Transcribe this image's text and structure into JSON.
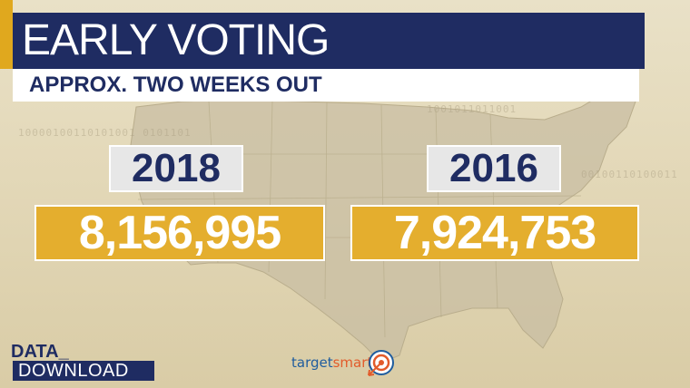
{
  "title": "EARLY VOTING",
  "subtitle": "APPROX. TWO WEEKS OUT",
  "comparison": [
    {
      "year": "2018",
      "value": "8,156,995"
    },
    {
      "year": "2016",
      "value": "7,924,753"
    }
  ],
  "branding": {
    "show_logo_top": "DATA_",
    "show_logo_bottom": "DOWNLOAD",
    "source_logo_part1": "target",
    "source_logo_part2": "smart"
  },
  "colors": {
    "navy": "#1f2c62",
    "gold": "#e4ae2e",
    "accent": "#e0a81e",
    "background": "#e3d8b8"
  },
  "icons": [
    "us-map-background",
    "target-icon"
  ]
}
